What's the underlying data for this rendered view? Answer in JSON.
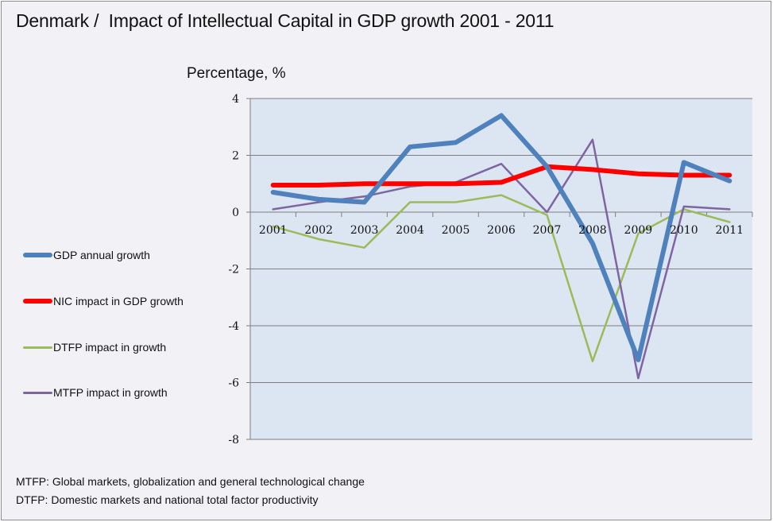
{
  "chart_data": {
    "type": "line",
    "title": "Denmark /  Impact of Intellectual Capital in GDP growth 2001 - 2011",
    "xlabel": "",
    "ylabel": "Percentage, %",
    "categories": [
      "2001",
      "2002",
      "2003",
      "2004",
      "2005",
      "2006",
      "2007",
      "2008",
      "2009",
      "2010",
      "2011"
    ],
    "ylim": [
      -8,
      4
    ],
    "yticks": [
      4,
      2,
      0,
      -2,
      -4,
      -6,
      -8
    ],
    "grid": true,
    "legend_position": "left",
    "series": [
      {
        "name": "GDP annual growth",
        "color": "#4f81bd",
        "width": "thick",
        "values": [
          0.7,
          0.45,
          0.35,
          2.3,
          2.45,
          3.4,
          1.6,
          -1.1,
          -5.2,
          1.75,
          1.1
        ]
      },
      {
        "name": "NIC impact in GDP growth",
        "color": "#ff0000",
        "width": "thick",
        "values": [
          0.95,
          0.95,
          1.0,
          1.0,
          1.0,
          1.05,
          1.6,
          1.5,
          1.35,
          1.3,
          1.3
        ]
      },
      {
        "name": "DTFP impact in growth",
        "color": "#9bbb59",
        "width": "thin",
        "values": [
          -0.5,
          -0.95,
          -1.25,
          0.35,
          0.35,
          0.6,
          -0.1,
          -5.25,
          -0.75,
          0.1,
          -0.35
        ]
      },
      {
        "name": "MTFP impact in growth",
        "color": "#8064a2",
        "width": "thin",
        "values": [
          0.1,
          0.35,
          0.55,
          0.9,
          1.05,
          1.7,
          0.0,
          2.55,
          -5.85,
          0.2,
          0.1
        ]
      }
    ],
    "plot_background": "#dce6f2",
    "notes": [
      "MTFP: Global markets, globalization and general technological change",
      "DTFP: Domestic markets and national total factor productivity"
    ]
  }
}
